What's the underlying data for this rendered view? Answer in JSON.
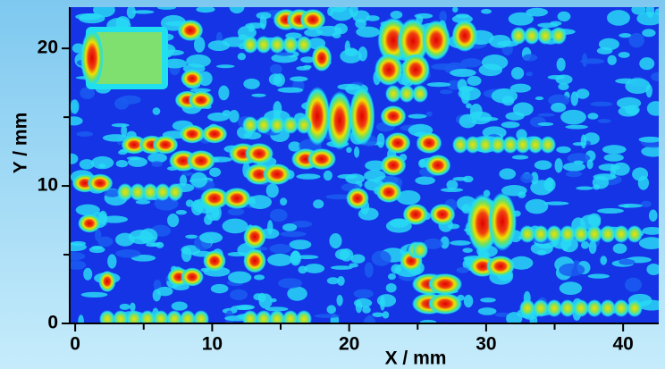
{
  "chart_data": {
    "type": "heatmap",
    "x_label": "X / mm",
    "y_label": "Y / mm",
    "xlim": [
      -0.4,
      42.6
    ],
    "ylim": [
      0,
      23
    ],
    "xticks": [
      0,
      10,
      20,
      30,
      40
    ],
    "yticks": [
      0,
      10,
      20
    ],
    "xminor": [
      5,
      15,
      25,
      35
    ],
    "yminor": [
      5,
      15
    ]
  }
}
